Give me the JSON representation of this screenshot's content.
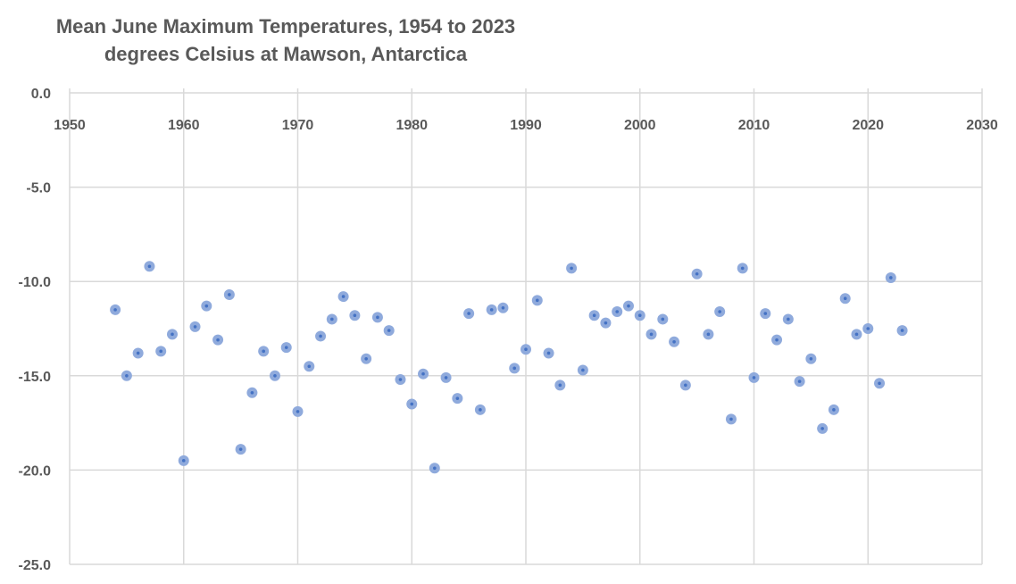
{
  "chart_data": {
    "type": "scatter",
    "title": "Mean June Maximum Temperatures, 1954 to 2023",
    "subtitle": "degrees Celsius at Mawson, Antarctica",
    "xlabel": "",
    "ylabel": "",
    "xlim": [
      1950,
      2030
    ],
    "ylim": [
      -25,
      0
    ],
    "x_ticks": [
      1950,
      1960,
      1970,
      1980,
      1990,
      2000,
      2010,
      2020,
      2030
    ],
    "y_ticks": [
      0,
      -5,
      -10,
      -15,
      -20,
      -25
    ],
    "x_tick_labels": [
      "1950",
      "1960",
      "1970",
      "1980",
      "1990",
      "2000",
      "2010",
      "2020",
      "2030"
    ],
    "y_tick_labels": [
      "0.0",
      "-5.0",
      "-10.0",
      "-15.0",
      "-20.0",
      "-25.0"
    ],
    "x_axis_position": "top",
    "grid": true,
    "legend": "none",
    "marker_color": "#8faadc",
    "marker_center_color": "#4472c4",
    "series": [
      {
        "x": [
          1954,
          1955,
          1956,
          1957,
          1958,
          1959,
          1960,
          1961,
          1962,
          1963,
          1964,
          1965,
          1966,
          1967,
          1968,
          1969,
          1970,
          1971,
          1972,
          1973,
          1974,
          1975,
          1976,
          1977,
          1978,
          1979,
          1980,
          1981,
          1982,
          1983,
          1984,
          1985,
          1986,
          1987,
          1988,
          1989,
          1990,
          1991,
          1992,
          1993,
          1994,
          1995,
          1996,
          1997,
          1998,
          1999,
          2000,
          2001,
          2002,
          2003,
          2004,
          2005,
          2006,
          2007,
          2008,
          2009,
          2010,
          2011,
          2012,
          2013,
          2014,
          2015,
          2016,
          2017,
          2018,
          2019,
          2020,
          2021,
          2022,
          2023
        ],
        "y": [
          -11.5,
          -15.0,
          -13.8,
          -9.2,
          -13.7,
          -12.8,
          -19.5,
          -12.4,
          -11.3,
          -13.1,
          -10.7,
          -18.9,
          -15.9,
          -13.7,
          -15.0,
          -13.5,
          -16.9,
          -14.5,
          -12.9,
          -12.0,
          -10.8,
          -11.8,
          -14.1,
          -11.9,
          -12.6,
          -15.2,
          -16.5,
          -14.9,
          -19.9,
          -15.1,
          -16.2,
          -11.7,
          -16.8,
          -11.5,
          -11.4,
          -14.6,
          -13.6,
          -11.0,
          -13.8,
          -15.5,
          -9.3,
          -14.7,
          -11.8,
          -12.2,
          -11.6,
          -11.3,
          -11.8,
          -12.8,
          -12.0,
          -13.2,
          -15.5,
          -9.6,
          -12.8,
          -11.6,
          -17.3,
          -9.3,
          -15.1,
          -11.7,
          -13.1,
          -12.0,
          -15.3,
          -14.1,
          -17.8,
          -16.8,
          -10.9,
          -12.8,
          -12.5,
          -15.4,
          -9.8,
          -12.6
        ]
      }
    ]
  }
}
